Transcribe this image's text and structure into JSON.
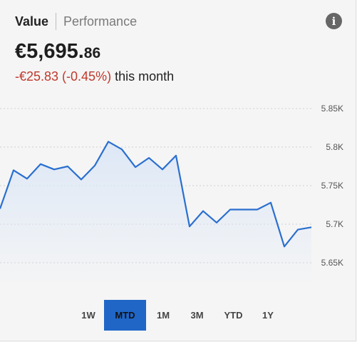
{
  "header": {
    "tabs": [
      {
        "label": "Value",
        "active": true
      },
      {
        "label": "Performance",
        "active": false
      }
    ],
    "info_icon": "info-icon"
  },
  "summary": {
    "value_main": "€5,695.",
    "value_cents": "86",
    "change_text": "-€25.83 (-0.45%)",
    "change_suffix": "this month",
    "negative_color": "#c0392b"
  },
  "chart_data": {
    "type": "area",
    "ylim": [
      5.625,
      5.875
    ],
    "y_ticks": [
      {
        "value": 5.85,
        "label": "5.85K"
      },
      {
        "value": 5.8,
        "label": "5.8K"
      },
      {
        "value": 5.75,
        "label": "5.75K"
      },
      {
        "value": 5.7,
        "label": "5.7K"
      },
      {
        "value": 5.65,
        "label": "5.65K"
      }
    ],
    "grid": true,
    "line_color": "#2a6fcf",
    "fill_color": "#dce7f6",
    "values": [
      5.72,
      5.77,
      5.759,
      5.778,
      5.771,
      5.775,
      5.758,
      5.776,
      5.807,
      5.797,
      5.774,
      5.786,
      5.771,
      5.789,
      5.697,
      5.717,
      5.702,
      5.719,
      5.719,
      5.719,
      5.728,
      5.671,
      5.693,
      5.696
    ]
  },
  "ranges": {
    "items": [
      "1W",
      "MTD",
      "1M",
      "3M",
      "YTD",
      "1Y"
    ],
    "active": "MTD",
    "accent": "#1f66c7"
  }
}
